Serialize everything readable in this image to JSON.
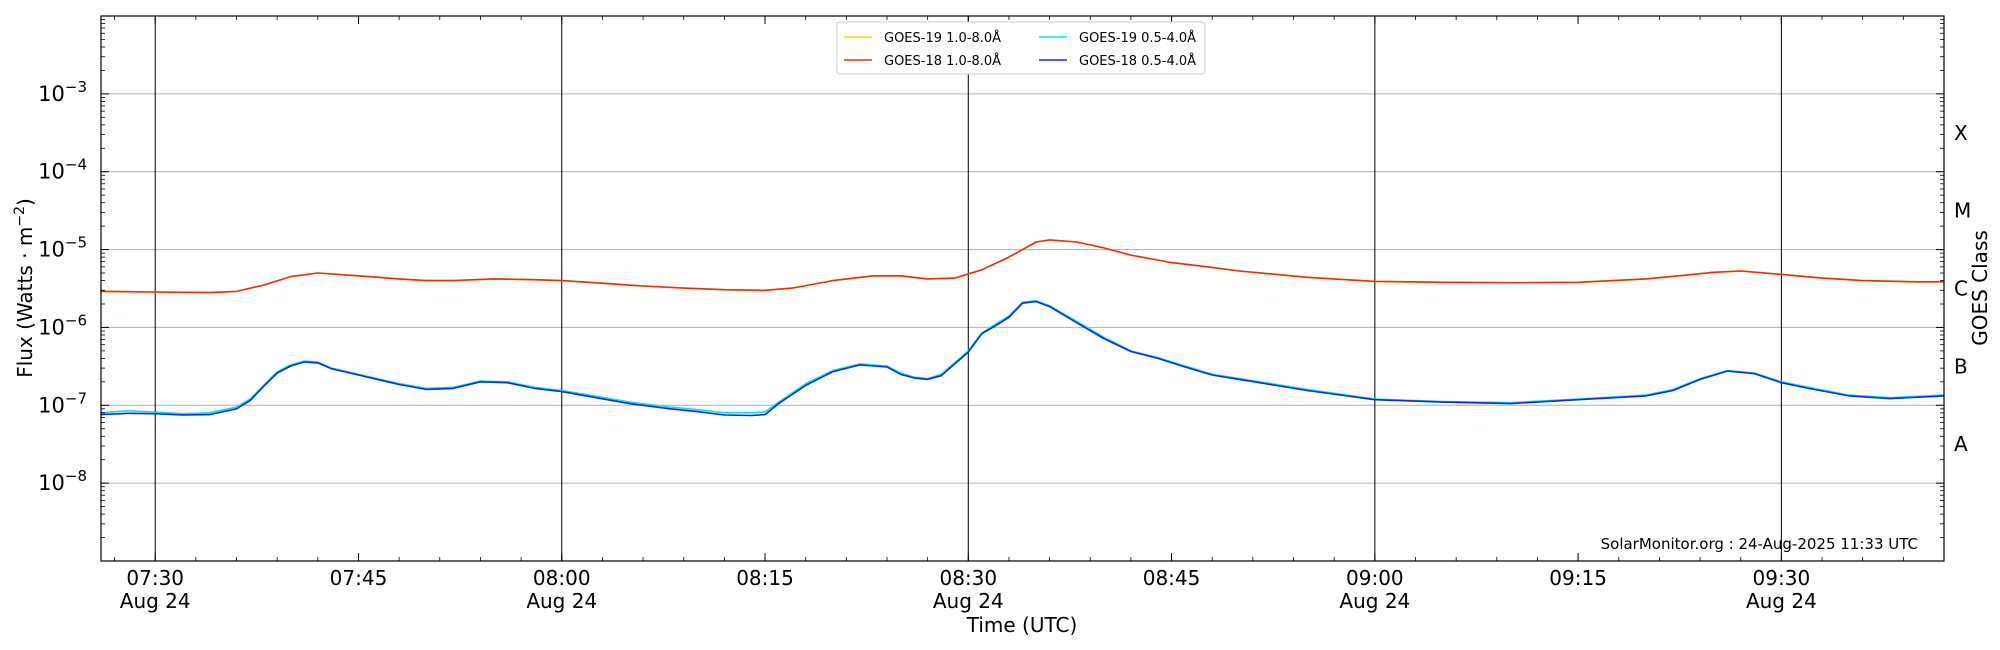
{
  "chart_data": {
    "type": "line",
    "xlabel": "Time (UTC)",
    "ylabel_main": "Flux (Watts · m",
    "ylabel_sup": "−2",
    "ylabel_close": ")",
    "right_label": "GOES Class",
    "credit": "SolarMonitor.org : 24-Aug-2025 11:33 UTC",
    "y_scale": "log",
    "ylim": [
      1e-09,
      0.01
    ],
    "xlim": [
      "07:26",
      "09:42"
    ],
    "grid": "horizontal at decades",
    "legend_position": "top-center",
    "y_ticks": [
      {
        "exp": -8,
        "base": "10",
        "sup": "−8"
      },
      {
        "exp": -7,
        "base": "10",
        "sup": "−7"
      },
      {
        "exp": -6,
        "base": "10",
        "sup": "−6"
      },
      {
        "exp": -5,
        "base": "10",
        "sup": "−5"
      },
      {
        "exp": -4,
        "base": "10",
        "sup": "−4"
      },
      {
        "exp": -3,
        "base": "10",
        "sup": "−3"
      }
    ],
    "x_ticks": [
      {
        "time": "07:30",
        "label": "07:30",
        "date": "Aug 24",
        "major": true
      },
      {
        "time": "07:45",
        "label": "07:45",
        "date": "",
        "major": false
      },
      {
        "time": "08:00",
        "label": "08:00",
        "date": "Aug 24",
        "major": true
      },
      {
        "time": "08:15",
        "label": "08:15",
        "date": "",
        "major": false
      },
      {
        "time": "08:30",
        "label": "08:30",
        "date": "Aug 24",
        "major": true
      },
      {
        "time": "08:45",
        "label": "08:45",
        "date": "",
        "major": false
      },
      {
        "time": "09:00",
        "label": "09:00",
        "date": "Aug 24",
        "major": true
      },
      {
        "time": "09:15",
        "label": "09:15",
        "date": "",
        "major": false
      },
      {
        "time": "09:30",
        "label": "09:30",
        "date": "Aug 24",
        "major": true
      }
    ],
    "goes_classes": [
      {
        "label": "A",
        "flux": 3.16e-08
      },
      {
        "label": "B",
        "flux": 3.16e-07
      },
      {
        "label": "C",
        "flux": 3.16e-06
      },
      {
        "label": "M",
        "flux": 3.16e-05
      },
      {
        "label": "X",
        "flux": 0.000316
      }
    ],
    "series": [
      {
        "name": "GOES-19 1.0-8.0Å",
        "color": "#ffd700",
        "x": [
          "07:26",
          "07:30",
          "07:34",
          "07:36",
          "07:38",
          "07:40",
          "07:42",
          "07:45",
          "07:48",
          "07:50",
          "07:52",
          "07:55",
          "07:58",
          "08:00",
          "08:03",
          "08:06",
          "08:09",
          "08:12",
          "08:15",
          "08:17",
          "08:20",
          "08:23",
          "08:25",
          "08:27",
          "08:29",
          "08:31",
          "08:33",
          "08:34",
          "08:35",
          "08:36",
          "08:38",
          "08:40",
          "08:42",
          "08:45",
          "08:48",
          "08:50",
          "08:55",
          "09:00",
          "09:05",
          "09:10",
          "09:15",
          "09:20",
          "09:23",
          "09:25",
          "09:27",
          "09:30",
          "09:33",
          "09:36",
          "09:40",
          "09:42"
        ],
        "y": [
          2.9e-06,
          2.85e-06,
          2.8e-06,
          2.9e-06,
          3.5e-06,
          4.5e-06,
          5e-06,
          4.6e-06,
          4.2e-06,
          4e-06,
          4e-06,
          4.2e-06,
          4.1e-06,
          4e-06,
          3.7e-06,
          3.4e-06,
          3.2e-06,
          3.05e-06,
          3e-06,
          3.2e-06,
          4e-06,
          4.6e-06,
          4.6e-06,
          4.2e-06,
          4.3e-06,
          5.5e-06,
          8e-06,
          1e-05,
          1.25e-05,
          1.33e-05,
          1.25e-05,
          1.05e-05,
          8.5e-06,
          6.8e-06,
          5.9e-06,
          5.3e-06,
          4.4e-06,
          3.9e-06,
          3.8e-06,
          3.75e-06,
          3.8e-06,
          4.2e-06,
          4.7e-06,
          5.1e-06,
          5.3e-06,
          4.8e-06,
          4.3e-06,
          4e-06,
          3.85e-06,
          3.85e-06
        ]
      },
      {
        "name": "GOES-18 1.0-8.0Å",
        "color": "#e8300a",
        "x": [
          "07:26",
          "07:30",
          "07:34",
          "07:36",
          "07:38",
          "07:40",
          "07:42",
          "07:45",
          "07:48",
          "07:50",
          "07:52",
          "07:55",
          "07:58",
          "08:00",
          "08:03",
          "08:06",
          "08:09",
          "08:12",
          "08:15",
          "08:17",
          "08:20",
          "08:23",
          "08:25",
          "08:27",
          "08:29",
          "08:31",
          "08:33",
          "08:34",
          "08:35",
          "08:36",
          "08:38",
          "08:40",
          "08:42",
          "08:45",
          "08:48",
          "08:50",
          "08:55",
          "09:00",
          "09:05",
          "09:10",
          "09:15",
          "09:20",
          "09:23",
          "09:25",
          "09:27",
          "09:30",
          "09:33",
          "09:36",
          "09:40",
          "09:42"
        ],
        "y": [
          2.9e-06,
          2.85e-06,
          2.8e-06,
          2.9e-06,
          3.5e-06,
          4.5e-06,
          5e-06,
          4.6e-06,
          4.2e-06,
          4e-06,
          4e-06,
          4.2e-06,
          4.1e-06,
          4e-06,
          3.7e-06,
          3.4e-06,
          3.2e-06,
          3.05e-06,
          3e-06,
          3.2e-06,
          4e-06,
          4.6e-06,
          4.6e-06,
          4.2e-06,
          4.3e-06,
          5.5e-06,
          8e-06,
          1e-05,
          1.25e-05,
          1.33e-05,
          1.25e-05,
          1.05e-05,
          8.5e-06,
          6.8e-06,
          5.9e-06,
          5.3e-06,
          4.4e-06,
          3.9e-06,
          3.8e-06,
          3.75e-06,
          3.8e-06,
          4.2e-06,
          4.7e-06,
          5.1e-06,
          5.3e-06,
          4.8e-06,
          4.3e-06,
          4e-06,
          3.85e-06,
          3.85e-06
        ]
      },
      {
        "name": "GOES-19 0.5-4.0Å",
        "color": "#00e5ee",
        "x": [
          "07:26",
          "07:28",
          "07:30",
          "07:32",
          "07:34",
          "07:36",
          "07:37",
          "07:38",
          "07:39",
          "07:40",
          "07:41",
          "07:42",
          "07:43",
          "07:45",
          "07:48",
          "07:50",
          "07:52",
          "07:54",
          "07:56",
          "07:58",
          "08:00",
          "08:02",
          "08:05",
          "08:08",
          "08:10",
          "08:12",
          "08:14",
          "08:15",
          "08:16",
          "08:18",
          "08:20",
          "08:22",
          "08:24",
          "08:25",
          "08:26",
          "08:27",
          "08:28",
          "08:30",
          "08:31",
          "08:32",
          "08:33",
          "08:34",
          "08:35",
          "08:36",
          "08:38",
          "08:40",
          "08:42",
          "08:44",
          "08:46",
          "08:48",
          "08:50",
          "08:55",
          "09:00",
          "09:05",
          "09:10",
          "09:15",
          "09:20",
          "09:22",
          "09:24",
          "09:26",
          "09:28",
          "09:30",
          "09:32",
          "09:35",
          "09:38",
          "09:42"
        ],
        "y": [
          8e-08,
          8.5e-08,
          8.2e-08,
          7.8e-08,
          8e-08,
          9.5e-08,
          1.2e-07,
          1.8e-07,
          2.7e-07,
          3.3e-07,
          3.7e-07,
          3.6e-07,
          3e-07,
          2.5e-07,
          1.9e-07,
          1.65e-07,
          1.7e-07,
          2.05e-07,
          2e-07,
          1.7e-07,
          1.55e-07,
          1.35e-07,
          1.1e-07,
          9.5e-08,
          8.8e-08,
          8e-08,
          8e-08,
          8.2e-08,
          1.1e-07,
          1.9e-07,
          2.8e-07,
          3.4e-07,
          3.2e-07,
          2.6e-07,
          2.3e-07,
          2.2e-07,
          2.5e-07,
          5e-07,
          8.5e-07,
          1.1e-06,
          1.4e-06,
          2.1e-06,
          2.2e-06,
          1.9e-06,
          1.2e-06,
          7.5e-07,
          5e-07,
          4.1e-07,
          3.2e-07,
          2.5e-07,
          2.2e-07,
          1.6e-07,
          1.2e-07,
          1.12e-07,
          1.08e-07,
          1.2e-07,
          1.35e-07,
          1.6e-07,
          2.2e-07,
          2.8e-07,
          2.6e-07,
          2e-07,
          1.7e-07,
          1.35e-07,
          1.25e-07,
          1.35e-07
        ]
      },
      {
        "name": "GOES-18 0.5-4.0Å",
        "color": "#0a2bdc",
        "x": [
          "07:26",
          "07:28",
          "07:30",
          "07:32",
          "07:34",
          "07:36",
          "07:37",
          "07:38",
          "07:39",
          "07:40",
          "07:41",
          "07:42",
          "07:43",
          "07:45",
          "07:48",
          "07:50",
          "07:52",
          "07:54",
          "07:56",
          "07:58",
          "08:00",
          "08:02",
          "08:05",
          "08:08",
          "08:10",
          "08:12",
          "08:14",
          "08:15",
          "08:16",
          "08:18",
          "08:20",
          "08:22",
          "08:24",
          "08:25",
          "08:26",
          "08:27",
          "08:28",
          "08:30",
          "08:31",
          "08:32",
          "08:33",
          "08:34",
          "08:35",
          "08:36",
          "08:38",
          "08:40",
          "08:42",
          "08:44",
          "08:46",
          "08:48",
          "08:50",
          "08:55",
          "09:00",
          "09:05",
          "09:10",
          "09:15",
          "09:20",
          "09:22",
          "09:24",
          "09:26",
          "09:28",
          "09:30",
          "09:32",
          "09:35",
          "09:38",
          "09:42"
        ],
        "y": [
          7.6e-08,
          7.9e-08,
          7.8e-08,
          7.5e-08,
          7.6e-08,
          9e-08,
          1.15e-07,
          1.75e-07,
          2.6e-07,
          3.2e-07,
          3.6e-07,
          3.5e-07,
          2.95e-07,
          2.45e-07,
          1.85e-07,
          1.6e-07,
          1.65e-07,
          2e-07,
          1.95e-07,
          1.65e-07,
          1.5e-07,
          1.3e-07,
          1.05e-07,
          9e-08,
          8.3e-08,
          7.5e-08,
          7.4e-08,
          7.6e-08,
          1.05e-07,
          1.8e-07,
          2.7e-07,
          3.3e-07,
          3.1e-07,
          2.5e-07,
          2.25e-07,
          2.15e-07,
          2.4e-07,
          4.8e-07,
          8.3e-07,
          1.05e-06,
          1.35e-06,
          2.05e-06,
          2.15e-06,
          1.85e-06,
          1.15e-06,
          7.2e-07,
          4.9e-07,
          4e-07,
          3.1e-07,
          2.45e-07,
          2.15e-07,
          1.55e-07,
          1.18e-07,
          1.1e-07,
          1.05e-07,
          1.18e-07,
          1.32e-07,
          1.55e-07,
          2.15e-07,
          2.75e-07,
          2.55e-07,
          1.95e-07,
          1.65e-07,
          1.32e-07,
          1.22e-07,
          1.32e-07
        ]
      }
    ]
  }
}
